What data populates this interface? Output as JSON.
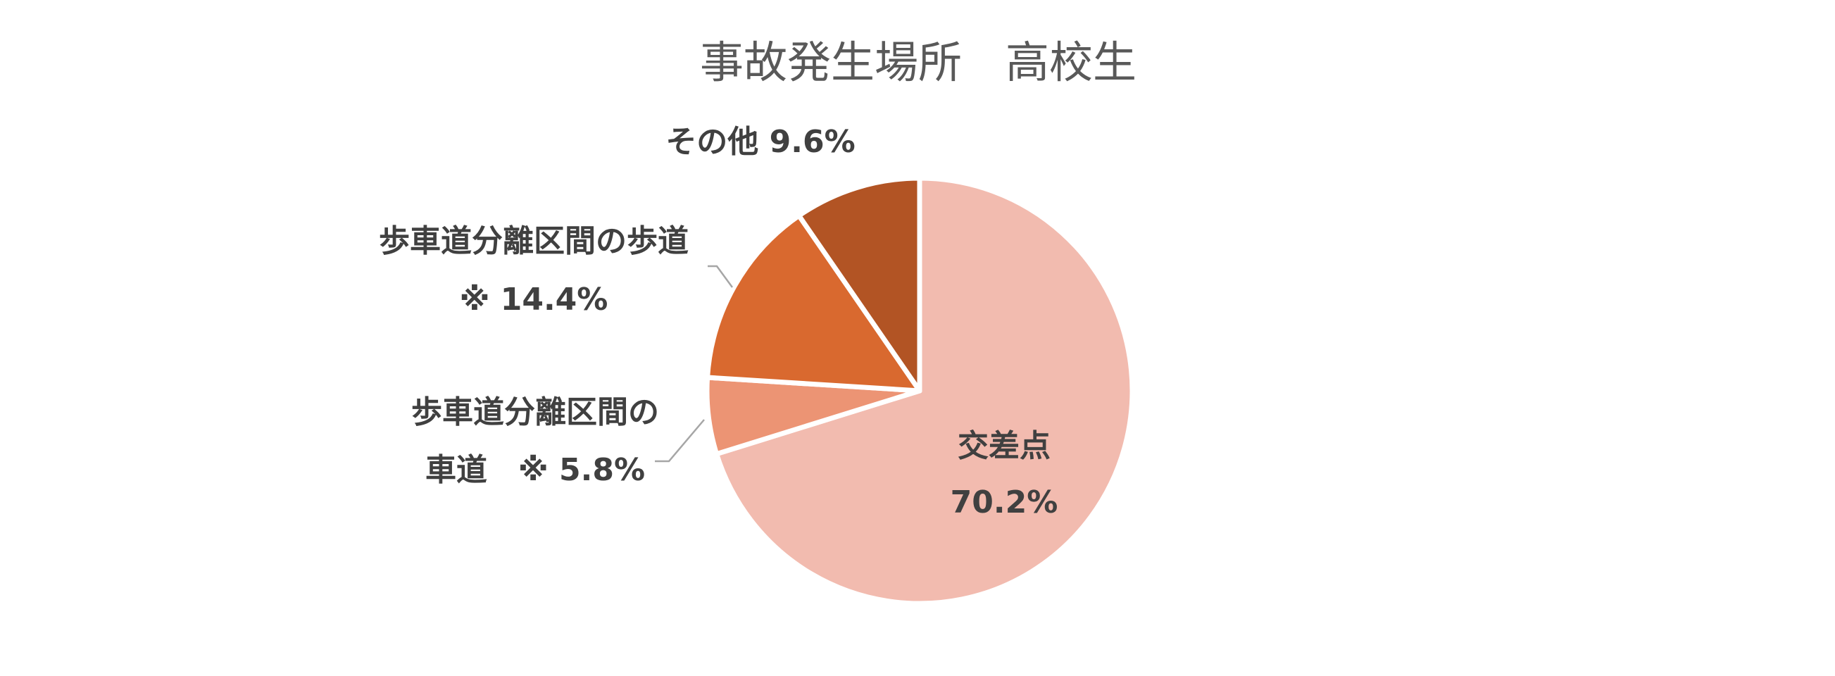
{
  "chart_data": {
    "type": "pie",
    "title": "事故発生場所　高校生",
    "start_angle_deg": 0,
    "direction": "clockwise",
    "slices": [
      {
        "lines": [
          "交差点",
          "70.2%"
        ],
        "value": 70.2,
        "color": "#F2BBAF"
      },
      {
        "lines": [
          "歩車道分離区間の",
          "車道　※ 5.8%"
        ],
        "value": 5.8,
        "color": "#EC9474"
      },
      {
        "lines": [
          "歩車道分離区間の歩道",
          "※ 14.4%"
        ],
        "value": 14.4,
        "color": "#D9692F"
      },
      {
        "lines": [
          "その他 9.6%"
        ],
        "value": 9.6,
        "color": "#B25424"
      }
    ]
  }
}
